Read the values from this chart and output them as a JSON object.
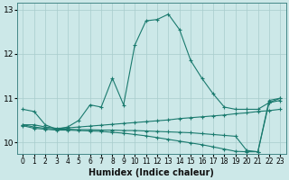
{
  "title": "",
  "xlabel": "Humidex (Indice chaleur)",
  "bg_color": "#cce8e8",
  "line_color": "#1a7a6e",
  "xlim": [
    -0.5,
    23.5
  ],
  "ylim": [
    9.75,
    13.15
  ],
  "yticks": [
    10,
    11,
    12,
    13
  ],
  "xticks": [
    0,
    1,
    2,
    3,
    4,
    5,
    6,
    7,
    8,
    9,
    10,
    11,
    12,
    13,
    14,
    15,
    16,
    17,
    18,
    19,
    20,
    21,
    22,
    23
  ],
  "lines": [
    {
      "x": [
        0,
        1,
        2,
        3,
        4,
        5,
        6,
        7,
        8,
        9,
        10,
        11,
        12,
        13,
        14,
        15,
        16,
        17,
        18,
        19,
        20,
        21,
        22,
        23
      ],
      "y": [
        10.75,
        10.7,
        10.4,
        10.3,
        10.35,
        10.5,
        10.85,
        10.8,
        11.45,
        10.85,
        12.2,
        12.75,
        12.78,
        12.9,
        12.55,
        11.85,
        11.45,
        11.1,
        10.8,
        10.75,
        10.75,
        10.75,
        10.9,
        11.0
      ]
    },
    {
      "x": [
        0,
        1,
        2,
        3,
        4,
        5,
        6,
        7,
        8,
        9,
        10,
        11,
        12,
        13,
        14,
        15,
        16,
        17,
        18,
        19,
        20,
        21,
        22,
        23
      ],
      "y": [
        10.4,
        10.4,
        10.35,
        10.32,
        10.33,
        10.35,
        10.37,
        10.39,
        10.41,
        10.43,
        10.45,
        10.47,
        10.49,
        10.51,
        10.54,
        10.56,
        10.58,
        10.6,
        10.62,
        10.65,
        10.67,
        10.7,
        10.72,
        10.75
      ]
    },
    {
      "x": [
        0,
        1,
        2,
        3,
        4,
        5,
        6,
        7,
        8,
        9,
        10,
        11,
        12,
        13,
        14,
        15,
        16,
        17,
        18,
        19,
        20,
        21,
        22,
        23
      ],
      "y": [
        10.4,
        10.35,
        10.32,
        10.3,
        10.3,
        10.29,
        10.29,
        10.28,
        10.28,
        10.27,
        10.27,
        10.26,
        10.25,
        10.24,
        10.23,
        10.22,
        10.2,
        10.18,
        10.16,
        10.14,
        9.82,
        9.79,
        10.9,
        10.95
      ]
    },
    {
      "x": [
        0,
        1,
        2,
        3,
        4,
        5,
        6,
        7,
        8,
        9,
        10,
        11,
        12,
        13,
        14,
        15,
        16,
        17,
        18,
        19,
        20,
        21,
        22,
        23
      ],
      "y": [
        10.38,
        10.32,
        10.3,
        10.28,
        10.28,
        10.27,
        10.26,
        10.25,
        10.23,
        10.21,
        10.18,
        10.15,
        10.11,
        10.07,
        10.03,
        9.99,
        9.95,
        9.9,
        9.85,
        9.8,
        9.79,
        9.79,
        10.95,
        11.0
      ]
    }
  ]
}
